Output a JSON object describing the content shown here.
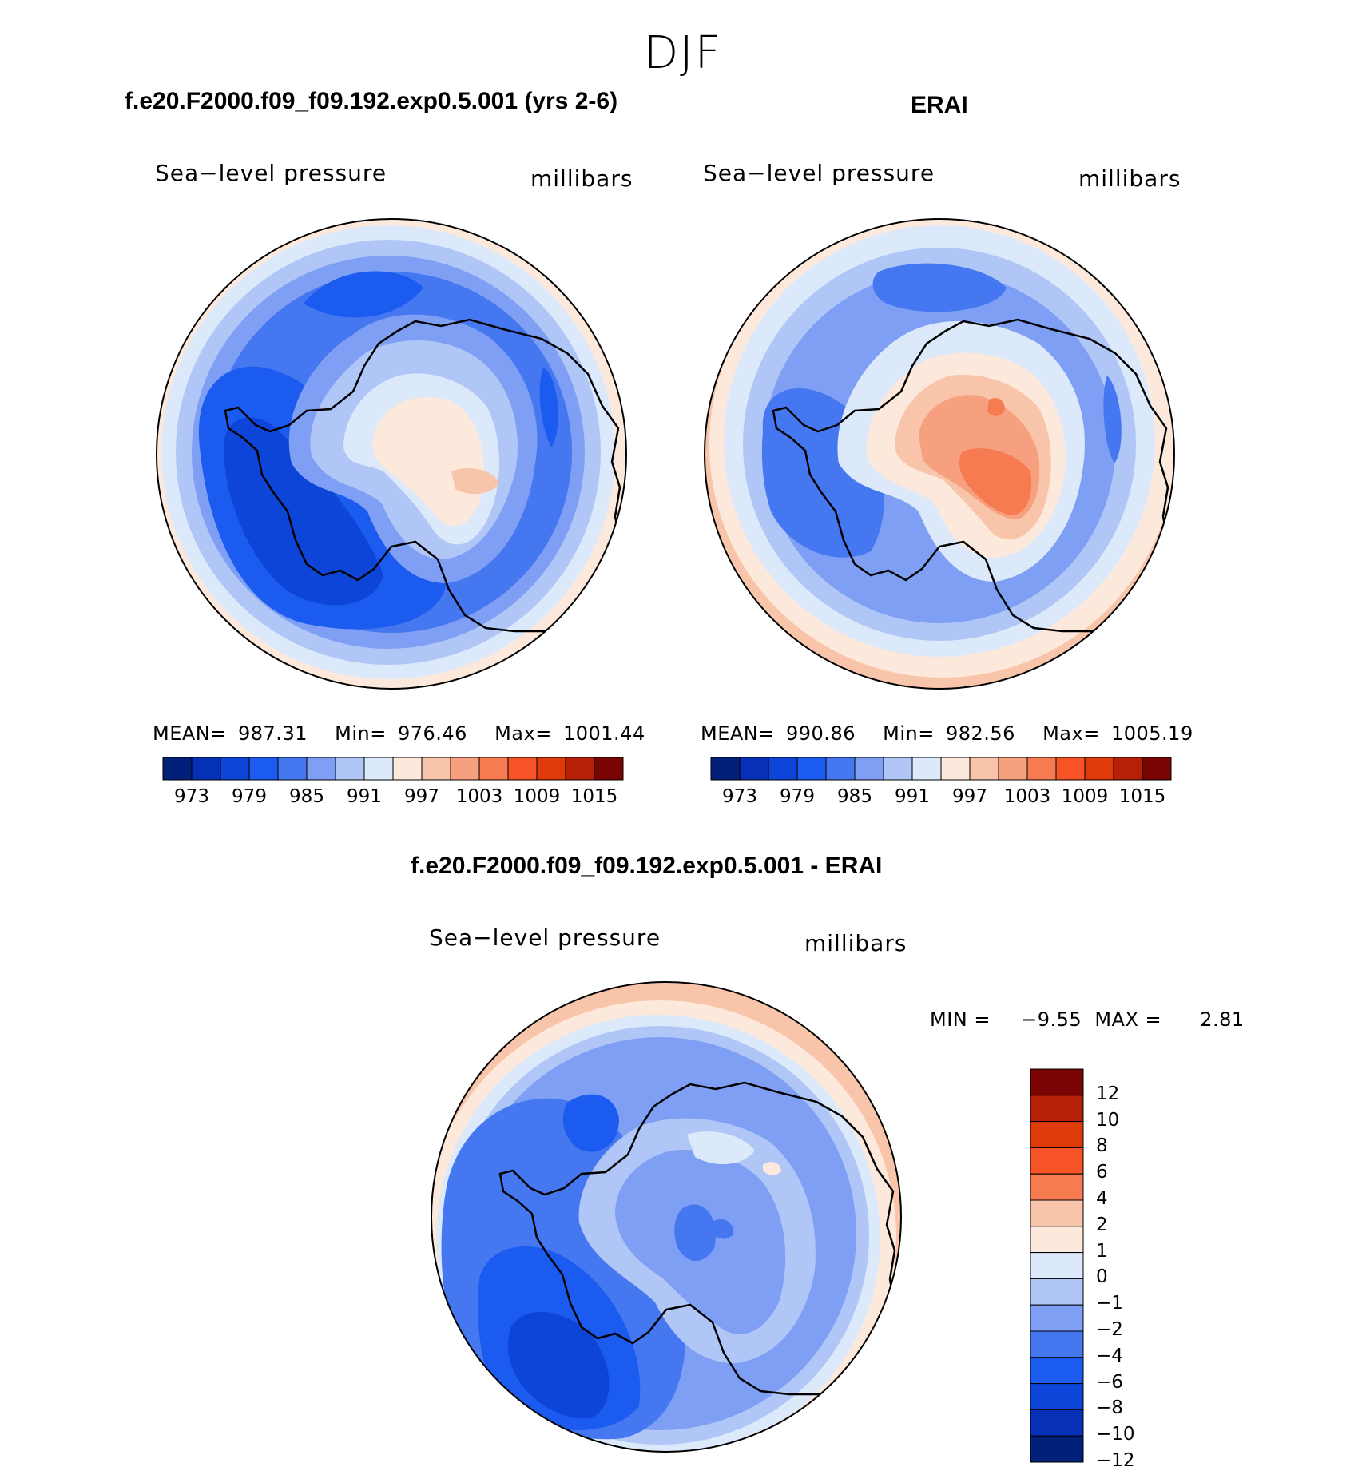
{
  "season": "DJF",
  "panels": [
    {
      "title": "f.e20.F2000.f09_f09.192.exp0.5.001 (yrs 2-6)",
      "variable": "Sea−level pressure",
      "units": "millibars",
      "stats": {
        "mean_label": "MEAN=",
        "mean": "987.31",
        "min_label": "Min=",
        "min": "976.46",
        "max_label": "Max=",
        "max": "1001.44"
      }
    },
    {
      "title": "ERAI",
      "variable": "Sea−level pressure",
      "units": "millibars",
      "stats": {
        "mean_label": "MEAN=",
        "mean": "990.86",
        "min_label": "Min=",
        "min": "982.56",
        "max_label": "Max=",
        "max": "1005.19"
      }
    },
    {
      "title": "f.e20.F2000.f09_f09.192.exp0.5.001 - ERAI",
      "variable": "Sea−level pressure",
      "units": "millibars",
      "stats": {
        "min_label": "MIN =",
        "min": "−9.55",
        "max_label": "MAX =",
        "max": "2.81"
      }
    }
  ],
  "abs_colorbar": {
    "colors": [
      "#00207a",
      "#0630b6",
      "#0d45d9",
      "#1b5bf0",
      "#4577f0",
      "#7f9ff5",
      "#afc6f7",
      "#dce9fb",
      "#fde9dc",
      "#f9c5aa",
      "#f6a07f",
      "#f77b50",
      "#f65426",
      "#df3a0a",
      "#b52006",
      "#7a0404"
    ],
    "tick_labels": [
      "973",
      "979",
      "985",
      "991",
      "997",
      "1003",
      "1009",
      "1015"
    ]
  },
  "diff_colorbar": {
    "colors": [
      "#7a0404",
      "#b52006",
      "#df3a0a",
      "#f65426",
      "#f77b50",
      "#f9c5aa",
      "#fde9dc",
      "#dce9fb",
      "#afc6f7",
      "#7f9ff5",
      "#4577f0",
      "#1b5bf0",
      "#0d45d9",
      "#0630b6",
      "#00207a"
    ],
    "tick_labels": [
      "12",
      "10",
      "8",
      "6",
      "4",
      "2",
      "1",
      "0",
      "−1",
      "−2",
      "−4",
      "−6",
      "−8",
      "−10",
      "−12"
    ]
  }
}
